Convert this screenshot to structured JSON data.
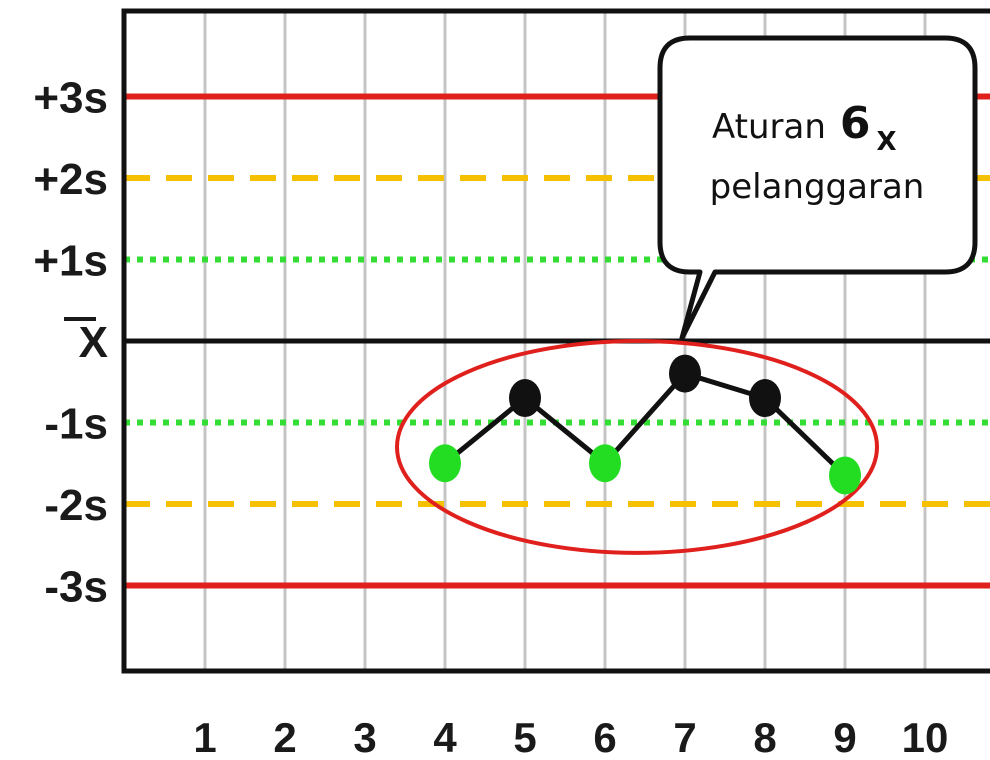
{
  "chart_data": {
    "type": "line",
    "x": [
      4,
      5,
      6,
      7,
      8,
      9
    ],
    "values": [
      -1.5,
      -0.7,
      -1.5,
      -0.4,
      -0.7,
      -1.65
    ],
    "point_colors": [
      "#22dd22",
      "#111111",
      "#22dd22",
      "#111111",
      "#111111",
      "#22dd22"
    ],
    "xlim": [
      0,
      10
    ],
    "ylim": [
      -4,
      4
    ],
    "xticks": [
      "1",
      "2",
      "3",
      "4",
      "5",
      "6",
      "7",
      "8",
      "9",
      "10"
    ],
    "yticks": [
      {
        "value": 3,
        "label": "+3s"
      },
      {
        "value": 2,
        "label": "+2s"
      },
      {
        "value": 1,
        "label": "+1s"
      },
      {
        "value": 0,
        "label": "X"
      },
      {
        "value": -1,
        "label": "-1s"
      },
      {
        "value": -2,
        "label": "-2s"
      },
      {
        "value": -3,
        "label": "-3s"
      }
    ],
    "limit_lines": [
      {
        "value": 3,
        "color": "#e0201c",
        "style": "solid"
      },
      {
        "value": 2,
        "color": "#f5c000",
        "style": "dashed"
      },
      {
        "value": 1,
        "color": "#33dd33",
        "style": "dotted"
      },
      {
        "value": 0,
        "color": "#111111",
        "style": "solid"
      },
      {
        "value": -1,
        "color": "#33dd33",
        "style": "dotted"
      },
      {
        "value": -2,
        "color": "#f5c000",
        "style": "dashed"
      },
      {
        "value": -3,
        "color": "#e0201c",
        "style": "solid"
      }
    ],
    "grid": true,
    "highlight_ellipse": {
      "x_center": 6.4,
      "y_center": -1.3,
      "x_radius": 3.0,
      "y_radius": 1.3,
      "color": "#e0201c"
    },
    "annotation": {
      "line1": "Aturan",
      "rule_number": "6",
      "rule_subscript": "X",
      "line2": "pelanggaran",
      "points_to_x": 7,
      "points_to_y": 0
    },
    "line_color": "#111111"
  }
}
